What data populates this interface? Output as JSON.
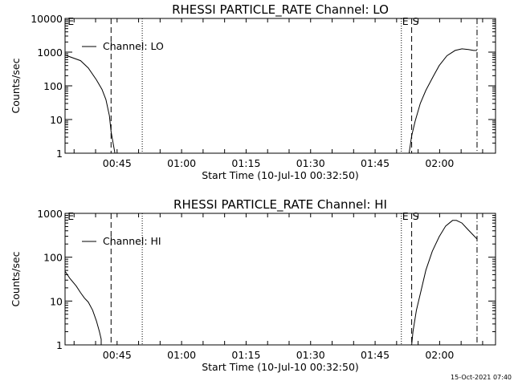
{
  "footer_timestamp": "15-Oct-2021 07:40",
  "chart_data": [
    {
      "type": "line",
      "title": "RHESSI PARTICLE_RATE Channel: LO",
      "xlabel": "Start Time (10-Jul-10 00:32:50)",
      "ylabel": "Counts/sec",
      "yscale": "log",
      "ylim": [
        1,
        10000
      ],
      "y_ticks": [
        {
          "v": 1,
          "label": "1"
        },
        {
          "v": 10,
          "label": "10"
        },
        {
          "v": 100,
          "label": "100"
        },
        {
          "v": 1000,
          "label": "1000"
        },
        {
          "v": 10000,
          "label": "10000"
        }
      ],
      "x_unit": "minutes after 00:00 UT",
      "xlim": [
        32.9,
        133.0
      ],
      "x_ticks": [
        {
          "v": 45,
          "label": "00:45"
        },
        {
          "v": 60,
          "label": "01:00"
        },
        {
          "v": 75,
          "label": "01:15"
        },
        {
          "v": 90,
          "label": "01:30"
        },
        {
          "v": 105,
          "label": "01:45"
        },
        {
          "v": 120,
          "label": "02:00"
        }
      ],
      "legend": {
        "label": "Channel: LO",
        "placement": "top-left"
      },
      "segments": [
        [
          [
            32.9,
            820
          ],
          [
            36.5,
            560
          ],
          [
            38.3,
            340
          ],
          [
            40.2,
            150
          ],
          [
            41.5,
            78
          ],
          [
            42.4,
            39
          ],
          [
            43.2,
            13
          ],
          [
            43.6,
            4.4
          ],
          [
            44.1,
            1.9
          ],
          [
            44.5,
            1
          ]
        ],
        [
          [
            112.9,
            1
          ],
          [
            113.5,
            3.3
          ],
          [
            114.3,
            8.9
          ],
          [
            115.5,
            30
          ],
          [
            116.8,
            74
          ],
          [
            118.6,
            200
          ],
          [
            119.9,
            400
          ],
          [
            121.7,
            780
          ],
          [
            123.6,
            1120
          ],
          [
            125.2,
            1250
          ],
          [
            126.7,
            1200
          ],
          [
            127.9,
            1120
          ],
          [
            128.7,
            1120
          ]
        ]
      ],
      "vlines": [
        {
          "t": 43.6,
          "style": "dashed"
        },
        {
          "t": 50.85,
          "style": "dotted"
        },
        {
          "t": 111.1,
          "style": "dotted"
        },
        {
          "t": 113.5,
          "style": "dashed"
        },
        {
          "t": 128.7,
          "style": "dashdot"
        }
      ],
      "markers": [
        {
          "t": 33.5,
          "label": "E"
        },
        {
          "t": 111.3,
          "label": "E"
        },
        {
          "t": 113.7,
          "label": "S"
        }
      ]
    },
    {
      "type": "line",
      "title": "RHESSI PARTICLE_RATE Channel: HI",
      "xlabel": "Start Time (10-Jul-10 00:32:50)",
      "ylabel": "Counts/sec",
      "yscale": "log",
      "ylim": [
        1,
        1000
      ],
      "y_ticks": [
        {
          "v": 1,
          "label": "1"
        },
        {
          "v": 10,
          "label": "10"
        },
        {
          "v": 100,
          "label": "100"
        },
        {
          "v": 1000,
          "label": "1000"
        }
      ],
      "x_unit": "minutes after 00:00 UT",
      "xlim": [
        32.9,
        133.0
      ],
      "x_ticks": [
        {
          "v": 45,
          "label": "00:45"
        },
        {
          "v": 60,
          "label": "01:00"
        },
        {
          "v": 75,
          "label": "01:15"
        },
        {
          "v": 90,
          "label": "01:30"
        },
        {
          "v": 105,
          "label": "01:45"
        },
        {
          "v": 120,
          "label": "02:00"
        }
      ],
      "legend": {
        "label": "Channel: HI",
        "placement": "top-left"
      },
      "segments": [
        [
          [
            32.9,
            48
          ],
          [
            34.0,
            33
          ],
          [
            35.5,
            22
          ],
          [
            36.5,
            15.5
          ],
          [
            37.4,
            11.7
          ],
          [
            38.3,
            9.5
          ],
          [
            39.3,
            6.2
          ],
          [
            40.2,
            3.5
          ],
          [
            40.9,
            2.0
          ],
          [
            41.3,
            1.35
          ],
          [
            41.3,
            1
          ]
        ],
        [
          [
            113.5,
            1
          ],
          [
            113.8,
            2.0
          ],
          [
            114.6,
            6.2
          ],
          [
            115.5,
            14.5
          ],
          [
            116.8,
            51
          ],
          [
            118.3,
            137
          ],
          [
            119.9,
            295
          ],
          [
            121.4,
            515
          ],
          [
            123.0,
            690
          ],
          [
            123.9,
            690
          ],
          [
            125.2,
            600
          ],
          [
            126.7,
            415
          ],
          [
            128.7,
            260
          ]
        ]
      ],
      "vlines": [
        {
          "t": 43.6,
          "style": "dashed"
        },
        {
          "t": 50.85,
          "style": "dotted"
        },
        {
          "t": 111.1,
          "style": "dotted"
        },
        {
          "t": 113.5,
          "style": "dashed"
        },
        {
          "t": 128.7,
          "style": "dashdot"
        }
      ],
      "markers": [
        {
          "t": 33.5,
          "label": "E"
        },
        {
          "t": 111.3,
          "label": "E"
        },
        {
          "t": 113.7,
          "label": "S"
        }
      ]
    }
  ]
}
